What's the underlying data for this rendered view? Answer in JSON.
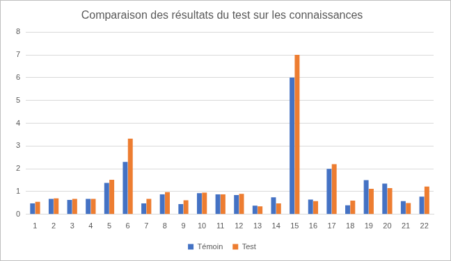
{
  "chart_data": {
    "type": "bar",
    "title": "Comparaison des résultats du test sur les connaissances",
    "categories": [
      "1",
      "2",
      "3",
      "4",
      "5",
      "6",
      "7",
      "8",
      "9",
      "10",
      "11",
      "12",
      "13",
      "14",
      "15",
      "16",
      "17",
      "18",
      "19",
      "20",
      "21",
      "22"
    ],
    "series": [
      {
        "name": "Témoin",
        "color": "#4472c4",
        "values": [
          0.48,
          0.68,
          0.63,
          0.68,
          1.38,
          2.3,
          0.48,
          0.88,
          0.45,
          0.93,
          0.88,
          0.85,
          0.38,
          0.75,
          6.0,
          0.65,
          2.0,
          0.4,
          1.5,
          1.35,
          0.58,
          0.78
        ]
      },
      {
        "name": "Test",
        "color": "#ed7d31",
        "values": [
          0.55,
          0.7,
          0.68,
          0.68,
          1.52,
          3.32,
          0.68,
          0.98,
          0.62,
          0.95,
          0.88,
          0.9,
          0.35,
          0.48,
          7.0,
          0.58,
          2.2,
          0.6,
          1.12,
          1.15,
          0.5,
          1.22
        ]
      }
    ],
    "ylim": [
      0,
      8
    ],
    "yticks": [
      0,
      1,
      2,
      3,
      4,
      5,
      6,
      7,
      8
    ],
    "grid": true,
    "legend": "bottom"
  }
}
